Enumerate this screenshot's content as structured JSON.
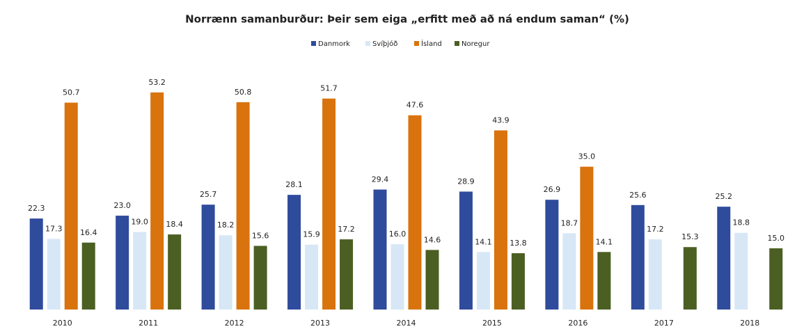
{
  "chart_data": {
    "type": "bar",
    "title": "Norrænn samanburður: Þeir sem eiga „erfitt með að ná endum saman“ (%)",
    "categories": [
      "2010",
      "2011",
      "2012",
      "2013",
      "2014",
      "2015",
      "2016",
      "2017",
      "2018"
    ],
    "series": [
      {
        "name": "Danmork",
        "color": "#2f4b9c",
        "values": [
          22.3,
          23.0,
          25.7,
          28.1,
          29.4,
          28.9,
          26.9,
          25.6,
          25.2
        ],
        "value_labels": [
          "22.3",
          "23.0",
          "25.7",
          "28.1",
          "29.4",
          "28.9",
          "26.9",
          "25.6",
          "25.2"
        ]
      },
      {
        "name": "Svíþjóð",
        "color": "#d7e7f6",
        "values": [
          17.3,
          19.0,
          18.2,
          15.9,
          16.0,
          14.1,
          18.7,
          17.2,
          18.8
        ],
        "value_labels": [
          "17.3",
          "19.0",
          "18.2",
          "15.9",
          "16.0",
          "14.1",
          "18.7",
          "17.2",
          "18.8"
        ]
      },
      {
        "name": "Ísland",
        "color": "#d9730d",
        "values": [
          50.7,
          53.2,
          50.8,
          51.7,
          47.6,
          43.9,
          35.0,
          null,
          null
        ],
        "value_labels": [
          "50.7",
          "53.2",
          "50.8",
          "51.7",
          "47.6",
          "43.9",
          "35.0",
          null,
          null
        ]
      },
      {
        "name": "Noregur",
        "color": "#4b5f23",
        "values": [
          16.4,
          18.4,
          15.6,
          17.2,
          14.6,
          13.8,
          14.1,
          15.3,
          15.0
        ],
        "value_labels": [
          "16.4",
          "18.4",
          "15.6",
          "17.2",
          "14.6",
          "13.8",
          "14.1",
          "15.3",
          "15.0"
        ]
      }
    ],
    "ylim": [
      0,
      60
    ],
    "legend": "top"
  }
}
